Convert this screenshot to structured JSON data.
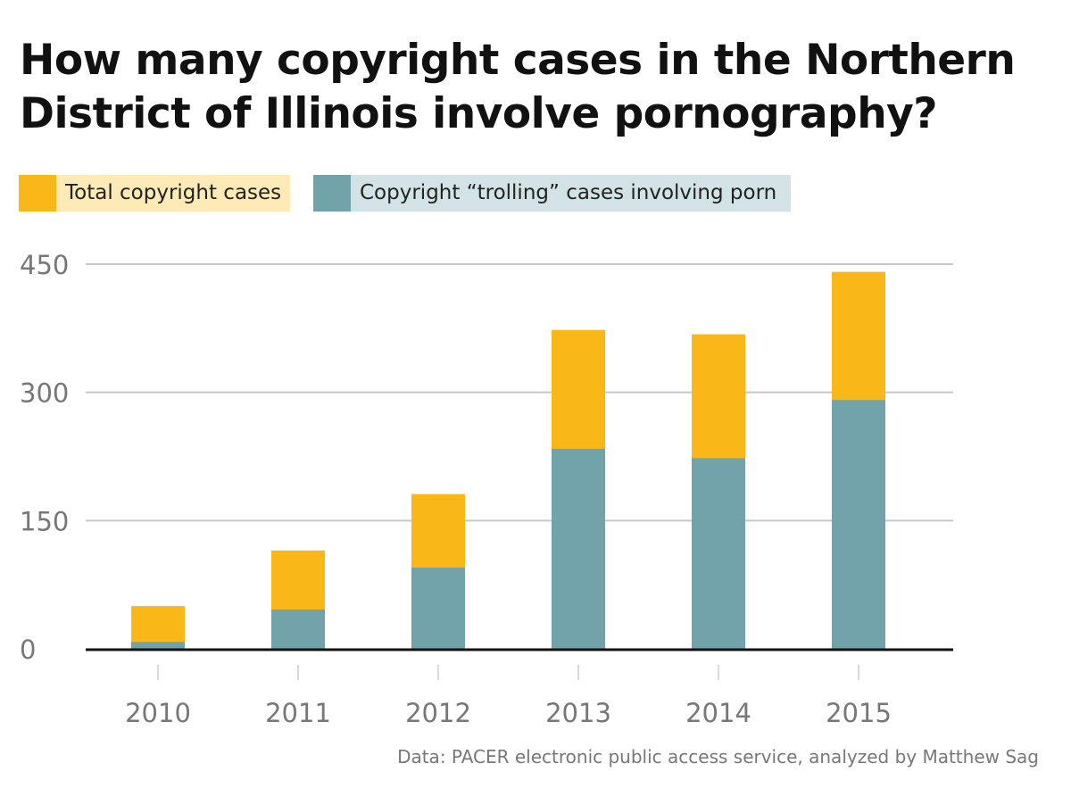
{
  "title": "How many copyright cases in the Northern District of Illinois involve pornography?",
  "source": "Data: PACER electronic public access service, analyzed by Matthew Sag",
  "colors": {
    "total": "#F9B818",
    "porn": "#72A3AA",
    "total_bg": "#FDEAB6",
    "porn_bg": "#D3E3E5"
  },
  "chart_data": {
    "type": "bar",
    "title": "How many copyright cases in the Northern District of Illinois involve pornography?",
    "categories": [
      "2010",
      "2011",
      "2012",
      "2013",
      "2014",
      "2015"
    ],
    "series": [
      {
        "name": "Total copyright cases",
        "values": [
          50,
          115,
          181,
          373,
          368,
          441
        ]
      },
      {
        "name": "Copyright “trolling” cases involving porn",
        "values": [
          8,
          46,
          95,
          234,
          223,
          291
        ]
      }
    ],
    "yticks": [
      "0",
      "150",
      "300",
      "450"
    ],
    "ylim": [
      0,
      450
    ],
    "grid": true,
    "legend": "top-left",
    "xlabel": "",
    "ylabel": ""
  }
}
